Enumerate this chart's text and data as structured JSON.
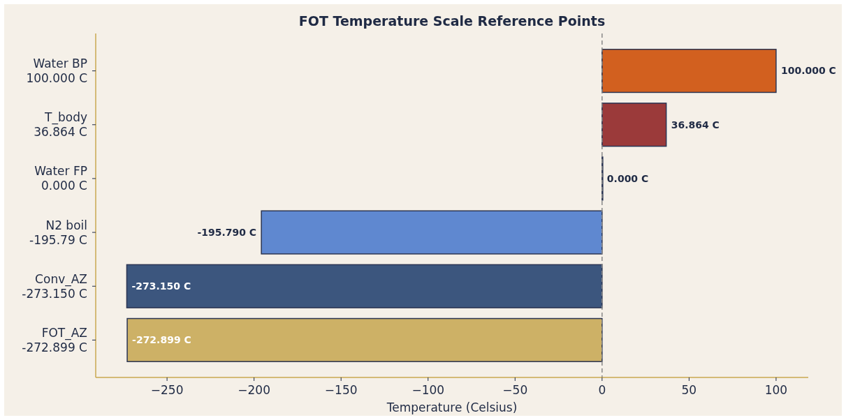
{
  "chart_data": {
    "type": "bar",
    "orientation": "horizontal",
    "title": "FOT Temperature Scale Reference Points",
    "xlabel": "Temperature (Celsius)",
    "categories": [
      "Water BP\n100.000 C",
      "T_body\n36.864 C",
      "Water FP\n0.000 C",
      "N2 boil\n-195.79 C",
      "Conv_AZ\n-273.150 C",
      "FOT_AZ\n-272.899 C"
    ],
    "values": [
      100,
      36.864,
      0,
      -195.79,
      -273.15,
      -272.899
    ],
    "colors": [
      "#d2601f",
      "#9b3a3a",
      "#2d3e6a",
      "#5f88d0",
      "#3c567e",
      "#cdb166"
    ],
    "value_labels": [
      "100.000 C",
      "36.864 C",
      "0.000 C",
      "-195.790 C",
      "-273.150 C",
      "-272.899 C"
    ],
    "xlim": [
      -291,
      118.5
    ],
    "xticks": [
      {
        "value": -250,
        "label": "−250"
      },
      {
        "value": -200,
        "label": "−200"
      },
      {
        "value": -150,
        "label": "−150"
      },
      {
        "value": -100,
        "label": "−100"
      },
      {
        "value": -50,
        "label": "−50"
      },
      0,
      50,
      100
    ],
    "ref_lines": [
      {
        "axis": "x",
        "value": 0,
        "color": "#888888",
        "line_style": "dashed"
      }
    ]
  }
}
